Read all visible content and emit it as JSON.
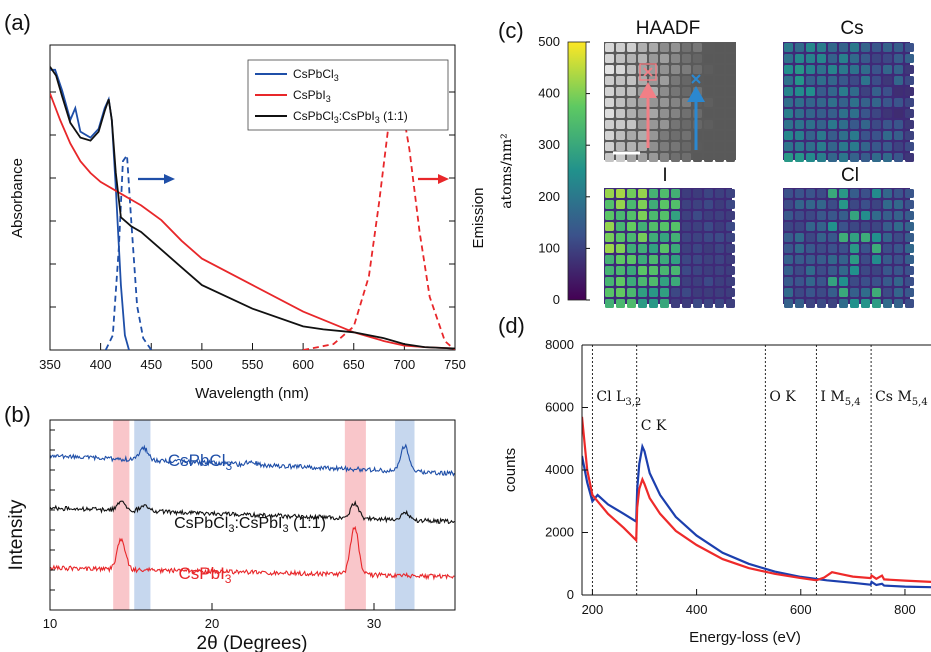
{
  "colors": {
    "blue": "#1f4fa8",
    "red": "#e8272a",
    "black": "#111111",
    "pinkband": "#f7b8bd",
    "blueband": "#b8cdea",
    "d_blue": "#1c3fae",
    "d_red": "#ee2a2a"
  },
  "panels": {
    "a": "(a)",
    "b": "(b)",
    "c": "(c)",
    "d": "(d)"
  },
  "chart_data": [
    {
      "id": "a",
      "type": "line",
      "xlabel": "Wavelength (nm)",
      "ylabel_left": "Absorbance",
      "ylabel_right": "Emission",
      "xlim": [
        350,
        750
      ],
      "xticks": [
        350,
        400,
        450,
        500,
        550,
        600,
        650,
        700,
        750
      ],
      "ylim": [
        0,
        1
      ],
      "legend_position": "top-right",
      "series": [
        {
          "name": "CsPbCl3",
          "legend": [
            "CsPbCl",
            "3",
            ""
          ],
          "color": "blue",
          "kind": "absorbance",
          "x": [
            350,
            355,
            362,
            370,
            375,
            380,
            390,
            398,
            404,
            408,
            411,
            415,
            420,
            424,
            428
          ],
          "y": [
            0.95,
            0.95,
            0.88,
            0.78,
            0.82,
            0.74,
            0.72,
            0.75,
            0.82,
            0.85,
            0.78,
            0.55,
            0.22,
            0.05,
            0.0
          ]
        },
        {
          "name": "CsPbCl3 emission",
          "color": "blue",
          "kind": "emission",
          "dashed": true,
          "x": [
            405,
            412,
            418,
            422,
            426,
            430,
            436,
            442,
            450
          ],
          "y": [
            0.0,
            0.05,
            0.35,
            0.64,
            0.66,
            0.45,
            0.15,
            0.04,
            0.0
          ]
        },
        {
          "name": "CsPbI3",
          "legend": [
            "CsPbI",
            "3",
            ""
          ],
          "color": "red",
          "kind": "absorbance",
          "x": [
            350,
            360,
            370,
            380,
            390,
            400,
            420,
            440,
            460,
            480,
            500,
            550,
            600,
            650,
            680,
            700,
            720,
            750
          ],
          "y": [
            0.87,
            0.78,
            0.7,
            0.64,
            0.6,
            0.57,
            0.53,
            0.49,
            0.44,
            0.37,
            0.31,
            0.22,
            0.13,
            0.06,
            0.03,
            0.015,
            0.01,
            0.005
          ]
        },
        {
          "name": "CsPbI3 emission",
          "color": "red",
          "kind": "emission",
          "dashed": true,
          "x": [
            600,
            630,
            650,
            665,
            675,
            685,
            692,
            698,
            705,
            715,
            725,
            740,
            750
          ],
          "y": [
            0.0,
            0.02,
            0.08,
            0.25,
            0.5,
            0.78,
            0.87,
            0.82,
            0.68,
            0.4,
            0.18,
            0.03,
            0.0
          ]
        },
        {
          "name": "CsPbCl3:CsPbI3 (1:1)",
          "legend": [
            "CsPbCl",
            "3",
            ":CsPbI",
            "3",
            " (1:1)"
          ],
          "color": "black",
          "kind": "absorbance",
          "x": [
            350,
            356,
            362,
            370,
            380,
            390,
            398,
            404,
            408,
            411,
            415,
            420,
            430,
            440,
            460,
            480,
            500,
            550,
            600,
            620,
            650,
            680,
            700,
            720,
            750
          ],
          "y": [
            0.96,
            0.93,
            0.86,
            0.77,
            0.72,
            0.71,
            0.74,
            0.81,
            0.85,
            0.78,
            0.6,
            0.45,
            0.42,
            0.4,
            0.34,
            0.28,
            0.22,
            0.14,
            0.08,
            0.07,
            0.06,
            0.04,
            0.02,
            0.01,
            0.005
          ]
        }
      ]
    },
    {
      "id": "b",
      "type": "line",
      "xlabel": "2θ (Degrees)",
      "ylabel": "Intensity",
      "xlim": [
        10,
        35
      ],
      "xticks": [
        10,
        20,
        30
      ],
      "highlight_bands": [
        {
          "x": [
            13.9,
            14.9
          ],
          "color": "pinkband"
        },
        {
          "x": [
            15.2,
            16.2
          ],
          "color": "blueband"
        },
        {
          "x": [
            28.2,
            29.5
          ],
          "color": "pinkband"
        },
        {
          "x": [
            31.3,
            32.5
          ],
          "color": "blueband"
        }
      ],
      "series": [
        {
          "name": "CsPbCl3",
          "label": [
            "CsPbCl",
            "3",
            ""
          ],
          "color": "blue",
          "offset": 2.0,
          "peaks": [
            [
              15.8,
              0.15
            ],
            [
              22.4,
              0.05
            ],
            [
              31.9,
              0.32
            ]
          ]
        },
        {
          "name": "CsPbCl3:CsPbI3 (1:1)",
          "label": [
            "CsPbCl",
            "3",
            ":CsPbI",
            "3",
            " (1:1)"
          ],
          "color": "black",
          "offset": 1.0,
          "peaks": [
            [
              14.4,
              0.1
            ],
            [
              15.8,
              0.07
            ],
            [
              28.8,
              0.18
            ],
            [
              31.9,
              0.1
            ]
          ]
        },
        {
          "name": "CsPbI3",
          "label": [
            "CsPbI",
            "3",
            ""
          ],
          "color": "red",
          "offset": 0.0,
          "peaks": [
            [
              14.4,
              0.38
            ],
            [
              28.8,
              0.6
            ]
          ]
        }
      ]
    },
    {
      "id": "c",
      "type": "heatmap",
      "colorbar": {
        "label": "atoms/nm²",
        "min": 0,
        "max": 500,
        "ticks": [
          0,
          100,
          200,
          300,
          400,
          500
        ]
      },
      "maps": [
        {
          "title": "HAADF",
          "style": "gray"
        },
        {
          "title": "Cs",
          "style": "viridis"
        },
        {
          "title": "I",
          "style": "viridis"
        },
        {
          "title": "Cl",
          "style": "viridis"
        }
      ]
    },
    {
      "id": "d",
      "type": "line",
      "xlabel": "Energy-loss (eV)",
      "ylabel": "counts",
      "xlim": [
        180,
        850
      ],
      "xticks": [
        200,
        400,
        600,
        800
      ],
      "ylim": [
        0,
        8000
      ],
      "yticks": [
        0,
        2000,
        4000,
        6000,
        8000
      ],
      "edges": [
        {
          "x": 200,
          "label": [
            "Cl L",
            "3,2",
            ""
          ]
        },
        {
          "x": 285,
          "label": [
            "C K",
            "",
            ""
          ]
        },
        {
          "x": 532,
          "label": [
            "O K",
            "",
            ""
          ]
        },
        {
          "x": 630,
          "label": [
            "I M",
            "5,4",
            ""
          ]
        },
        {
          "x": 735,
          "label": [
            "Cs M",
            "5,4",
            ""
          ]
        }
      ],
      "series": [
        {
          "name": "blue",
          "color": "d_blue",
          "x": [
            180,
            190,
            200,
            210,
            230,
            260,
            284,
            286,
            290,
            296,
            300,
            310,
            330,
            360,
            400,
            450,
            500,
            550,
            600,
            650,
            700,
            734,
            736,
            745,
            756,
            760,
            800,
            850
          ],
          "y": [
            4450,
            3600,
            3000,
            3200,
            2900,
            2600,
            2350,
            3400,
            4200,
            4750,
            4600,
            3900,
            3200,
            2500,
            1900,
            1350,
            1000,
            750,
            580,
            470,
            390,
            330,
            420,
            320,
            360,
            300,
            270,
            250
          ]
        },
        {
          "name": "red",
          "color": "d_red",
          "x": [
            180,
            190,
            200,
            210,
            230,
            260,
            284,
            286,
            290,
            296,
            300,
            310,
            330,
            360,
            400,
            450,
            500,
            550,
            600,
            630,
            645,
            660,
            680,
            700,
            734,
            736,
            745,
            756,
            760,
            800,
            850
          ],
          "y": [
            5700,
            4000,
            3200,
            3000,
            2600,
            2150,
            1750,
            2800,
            3400,
            3700,
            3550,
            3100,
            2600,
            2050,
            1600,
            1150,
            860,
            680,
            540,
            470,
            560,
            730,
            660,
            590,
            540,
            620,
            520,
            620,
            500,
            460,
            420
          ]
        }
      ]
    }
  ]
}
